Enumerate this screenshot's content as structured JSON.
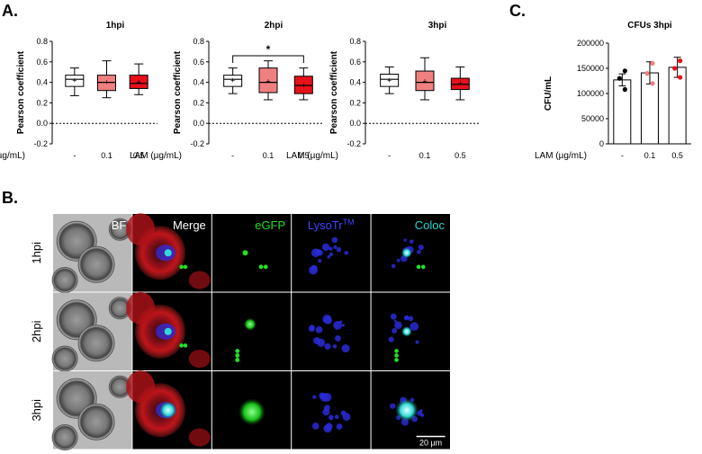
{
  "panel_labels": {
    "a": "A.",
    "b": "B.",
    "c": "C."
  },
  "lam_label": "LAM (µg/mL)",
  "chart_data": [
    {
      "type": "box",
      "title": "1hpi",
      "ylabel": "Pearson coefficient",
      "xlabel": "LAM (µg/mL)",
      "categories": [
        "-",
        "0.1",
        "0.5"
      ],
      "ylim": [
        -0.2,
        0.8
      ],
      "yticks": [
        "-0.2",
        "0.0",
        "0.2",
        "0.4",
        "0.6",
        "0.8"
      ],
      "reference_line": 0.0,
      "boxes": [
        {
          "min": 0.27,
          "q1": 0.36,
          "median": 0.43,
          "q3": 0.47,
          "max": 0.54,
          "mean": 0.42
        },
        {
          "min": 0.25,
          "q1": 0.32,
          "median": 0.4,
          "q3": 0.47,
          "max": 0.61,
          "mean": 0.4
        },
        {
          "min": 0.28,
          "q1": 0.34,
          "median": 0.39,
          "q3": 0.47,
          "max": 0.58,
          "mean": 0.4
        }
      ],
      "box_colors": [
        "#ffffff",
        "#f08080",
        "#e8101a"
      ]
    },
    {
      "type": "box",
      "title": "2hpi",
      "ylabel": "Pearson coefficient",
      "xlabel": "LAM (µg/mL)",
      "categories": [
        "-",
        "0.1",
        "0.5"
      ],
      "ylim": [
        -0.2,
        0.8
      ],
      "yticks": [
        "-0.2",
        "0.0",
        "0.2",
        "0.4",
        "0.6",
        "0.8"
      ],
      "reference_line": 0.0,
      "boxes": [
        {
          "min": 0.29,
          "q1": 0.36,
          "median": 0.43,
          "q3": 0.47,
          "max": 0.54,
          "mean": 0.42
        },
        {
          "min": 0.23,
          "q1": 0.3,
          "median": 0.4,
          "q3": 0.54,
          "max": 0.61,
          "mean": 0.41
        },
        {
          "min": 0.23,
          "q1": 0.29,
          "median": 0.37,
          "q3": 0.46,
          "max": 0.54,
          "mean": 0.37
        }
      ],
      "box_colors": [
        "#ffffff",
        "#f08080",
        "#e8101a"
      ],
      "significance": {
        "from": 0,
        "to": 2,
        "label": "*"
      }
    },
    {
      "type": "box",
      "title": "3hpi",
      "ylabel": "Pearson coefficient",
      "xlabel": "LAM (µg/mL)",
      "categories": [
        "-",
        "0.1",
        "0.5"
      ],
      "ylim": [
        -0.2,
        0.8
      ],
      "yticks": [
        "-0.2",
        "0.0",
        "0.2",
        "0.4",
        "0.6",
        "0.8"
      ],
      "reference_line": 0.0,
      "boxes": [
        {
          "min": 0.29,
          "q1": 0.36,
          "median": 0.43,
          "q3": 0.48,
          "max": 0.55,
          "mean": 0.42
        },
        {
          "min": 0.23,
          "q1": 0.32,
          "median": 0.4,
          "q3": 0.51,
          "max": 0.64,
          "mean": 0.41
        },
        {
          "min": 0.23,
          "q1": 0.33,
          "median": 0.38,
          "q3": 0.44,
          "max": 0.55,
          "mean": 0.39
        }
      ],
      "box_colors": [
        "#ffffff",
        "#f08080",
        "#e8101a"
      ]
    },
    {
      "type": "bar",
      "title": "CFUs 3hpi",
      "ylabel": "CFU/mL",
      "xlabel": "LAM (µg/mL)",
      "categories": [
        "-",
        "0.1",
        "0.5"
      ],
      "ylim": [
        0,
        200000
      ],
      "yticks": [
        "0",
        "50000",
        "100000",
        "150000",
        "200000"
      ],
      "values": [
        127000,
        141000,
        152000
      ],
      "errors": [
        12000,
        22000,
        20000
      ],
      "points": [
        [
          145000,
          130000,
          108000
        ],
        [
          160000,
          140000,
          120000
        ],
        [
          165000,
          150000,
          132000
        ]
      ],
      "point_colors": [
        "#000000",
        "#f08080",
        "#e8101a"
      ]
    }
  ],
  "microscopy": {
    "channels": [
      {
        "label": "BF",
        "color": "#ffffff"
      },
      {
        "label": "Merge",
        "color": "#ffffff"
      },
      {
        "label": "eGFP",
        "color": "#22dd22"
      },
      {
        "label": "LysoTr",
        "sup": "TM",
        "color": "#4444ff"
      },
      {
        "label": "Coloc",
        "color": "#22d5d5"
      }
    ],
    "rows": [
      "1hpi",
      "2hpi",
      "3hpi"
    ],
    "scale_bar": "20 µm"
  }
}
